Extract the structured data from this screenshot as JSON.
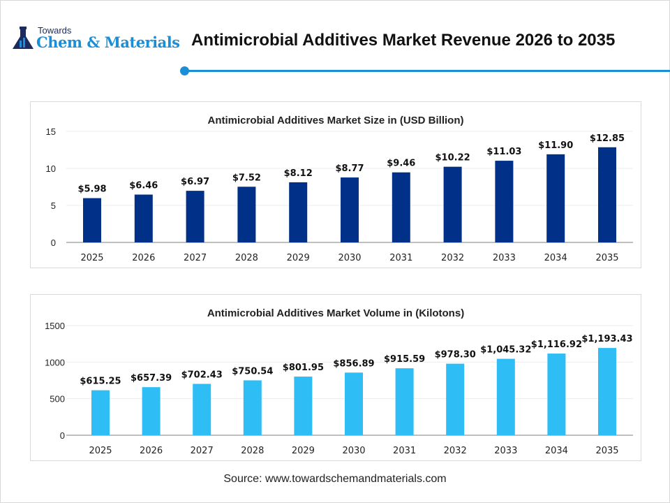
{
  "logo": {
    "line1": "Towards",
    "line2": "Chem & Materials"
  },
  "header": {
    "title": "Antimicrobial Additives Market Revenue 2026 to 2035"
  },
  "source": "Source: www.towardschemandmaterials.com",
  "chart_data": [
    {
      "type": "bar",
      "title": "Antimicrobial Additives Market Size in (USD Billion)",
      "categories": [
        "2025",
        "2026",
        "2027",
        "2028",
        "2029",
        "2030",
        "2031",
        "2032",
        "2033",
        "2034",
        "2035"
      ],
      "values": [
        5.98,
        6.46,
        6.97,
        7.52,
        8.12,
        8.77,
        9.46,
        10.22,
        11.03,
        11.9,
        12.85
      ],
      "data_labels": [
        "$5.98",
        "$6.46",
        "$6.97",
        "$7.52",
        "$8.12",
        "$8.77",
        "$9.46",
        "$10.22",
        "$11.03",
        "$11.90",
        "$12.85"
      ],
      "ylim": [
        0,
        15
      ],
      "yticks": [
        0,
        5,
        10,
        15
      ],
      "grid": true,
      "color": "#003087"
    },
    {
      "type": "bar",
      "title": "Antimicrobial Additives Market Volume in (Kilotons)",
      "categories": [
        "2025",
        "2026",
        "2027",
        "2028",
        "2029",
        "2030",
        "2031",
        "2032",
        "2033",
        "2034",
        "2035"
      ],
      "values": [
        615.25,
        657.39,
        702.43,
        750.54,
        801.95,
        856.89,
        915.59,
        978.3,
        1045.32,
        1116.92,
        1193.43
      ],
      "data_labels": [
        "$615.25",
        "$657.39",
        "$702.43",
        "$750.54",
        "$801.95",
        "$856.89",
        "$915.59",
        "$978.30",
        "$1,045.32",
        "$1,116.92",
        "$1,193.43"
      ],
      "ylim": [
        0,
        1500
      ],
      "yticks": [
        0,
        500,
        1000,
        1500
      ],
      "grid": true,
      "color": "#2ebdf5"
    }
  ]
}
